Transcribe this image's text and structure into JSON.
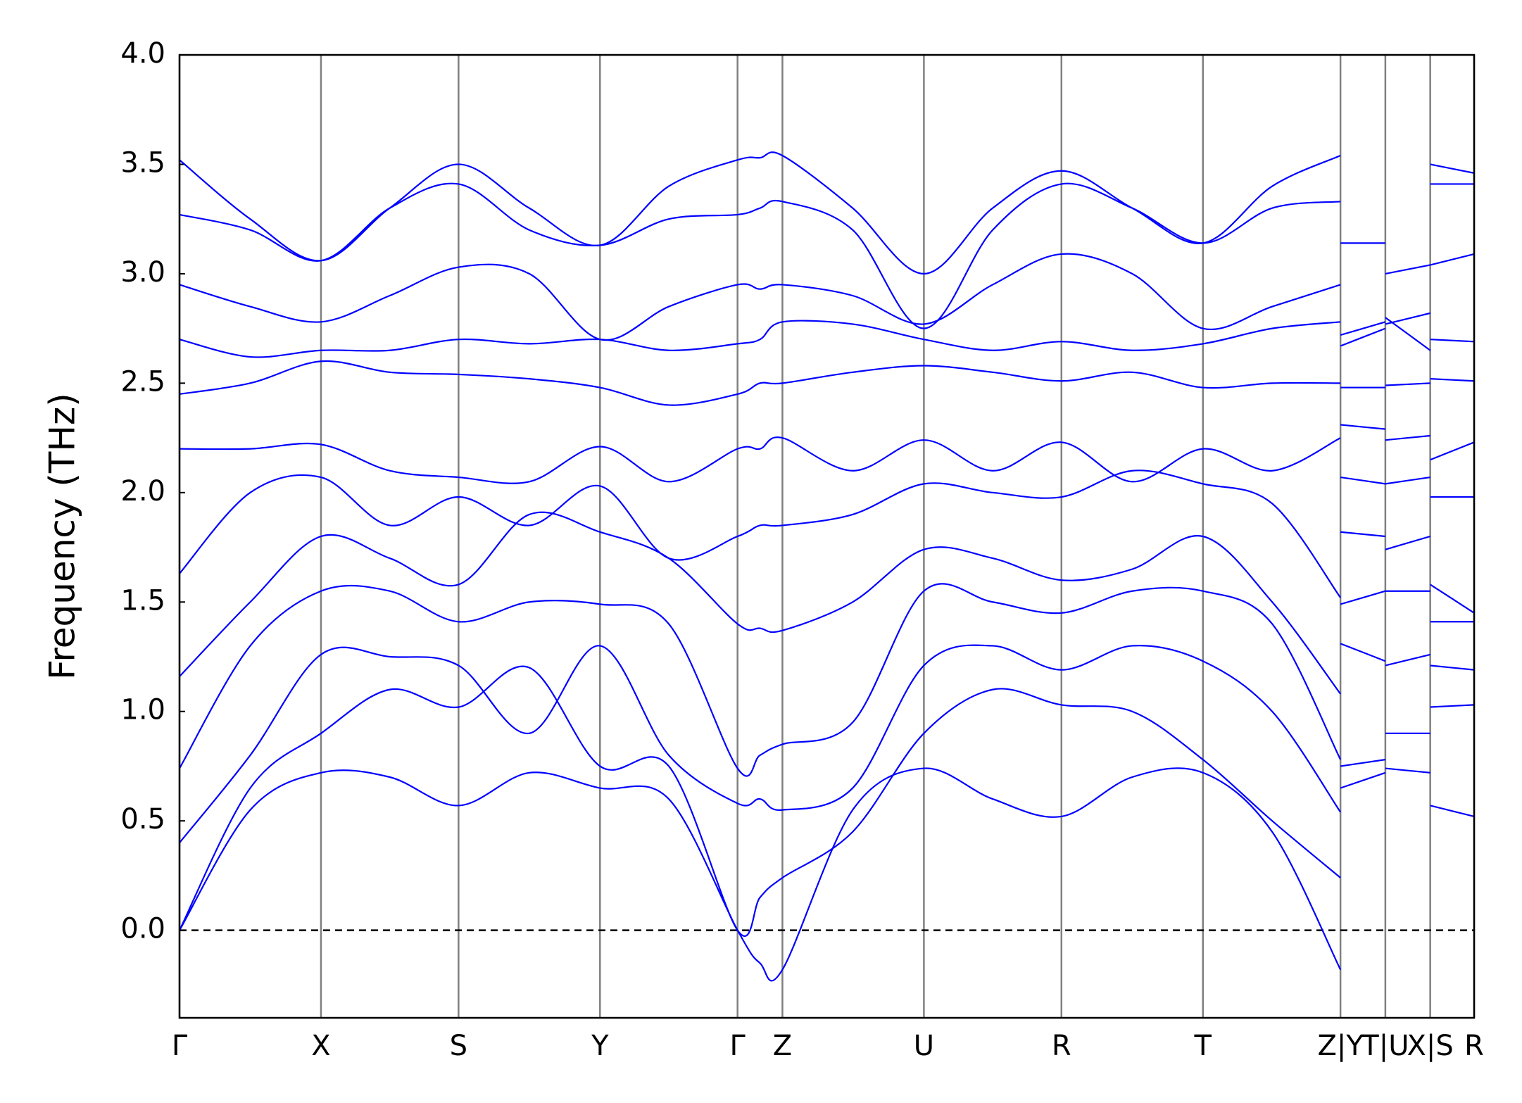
{
  "chart_data": {
    "type": "line",
    "ylabel": "Frequency (THz)",
    "color": "#0000ff",
    "ylim": [
      -0.4,
      4.0
    ],
    "yticks": [
      {
        "value": 0,
        "label": "0.0"
      },
      0.5,
      {
        "value": 1,
        "label": "1.0"
      },
      1.5,
      {
        "value": 2,
        "label": "2.0"
      },
      2.5,
      {
        "value": 3,
        "label": "3.0"
      },
      3.5,
      {
        "value": 4,
        "label": "4.0"
      }
    ],
    "xlim": [
      0,
      1.327
    ],
    "xticks": [
      {
        "value": 0,
        "label": "Γ"
      },
      {
        "value": 0.145,
        "label": "X"
      },
      {
        "value": 0.286,
        "label": "S"
      },
      {
        "value": 0.431,
        "label": "Y"
      },
      {
        "value": 0.572,
        "label": "Γ"
      },
      {
        "value": 0.618,
        "label": "Z"
      },
      {
        "value": 0.763,
        "label": "U"
      },
      {
        "value": 0.904,
        "label": "R"
      },
      {
        "value": 1.049,
        "label": "T"
      },
      {
        "value": 1.19,
        "label": "Z|Y"
      },
      {
        "value": 1.236,
        "label": "T|U"
      },
      {
        "value": 1.282,
        "label": "X|S"
      },
      {
        "value": 1.327,
        "label": "R"
      }
    ],
    "hline": 0,
    "x": [
      0,
      0.0725,
      0.145,
      0.2155,
      0.286,
      0.3585,
      0.431,
      0.5015,
      0.572,
      0.595,
      0.618,
      0.69,
      0.763,
      0.8335,
      0.904,
      0.9765,
      1.049,
      1.12,
      1.19,
      1.19,
      1.19,
      1.236,
      1.236,
      1.236,
      1.282,
      1.282,
      1.282,
      1.327
    ],
    "series": [
      {
        "values": [
          0,
          0.55,
          0.72,
          0.7,
          0.57,
          0.72,
          0.65,
          0.6,
          0,
          -0.15,
          -0.18,
          0.55,
          0.74,
          0.6,
          0.52,
          0.7,
          0.72,
          0.45,
          -0.18,
          null,
          0.65,
          0.72,
          null,
          0.74,
          0.72,
          null,
          0.57,
          0.52
        ]
      },
      {
        "values": [
          0,
          0.65,
          0.9,
          1.1,
          1.02,
          1.2,
          0.75,
          0.75,
          0,
          0.15,
          0.24,
          0.45,
          0.9,
          1.1,
          1.03,
          1.0,
          0.78,
          0.5,
          0.24,
          null,
          0.75,
          0.78,
          null,
          0.9,
          0.9,
          null,
          1.02,
          1.03
        ]
      },
      {
        "values": [
          0.4,
          0.8,
          1.26,
          1.25,
          1.21,
          0.9,
          1.3,
          0.8,
          0.58,
          0.6,
          0.55,
          0.65,
          1.21,
          1.3,
          1.19,
          1.3,
          1.23,
          1.0,
          0.54,
          null,
          1.31,
          1.23,
          null,
          1.21,
          1.26,
          null,
          1.21,
          1.19
        ]
      },
      {
        "values": [
          0.74,
          1.3,
          1.55,
          1.55,
          1.41,
          1.5,
          1.49,
          1.4,
          0.74,
          0.8,
          0.85,
          0.95,
          1.55,
          1.5,
          1.45,
          1.55,
          1.55,
          1.4,
          0.78,
          null,
          1.49,
          1.55,
          null,
          1.55,
          1.55,
          null,
          1.41,
          1.41
        ]
      },
      {
        "values": [
          1.16,
          1.5,
          1.8,
          1.7,
          1.58,
          1.9,
          1.82,
          1.7,
          1.4,
          1.38,
          1.37,
          1.5,
          1.74,
          1.7,
          1.6,
          1.65,
          1.8,
          1.5,
          1.08,
          null,
          1.82,
          1.8,
          null,
          1.74,
          1.8,
          null,
          1.58,
          1.45
        ]
      },
      {
        "values": [
          1.63,
          2.0,
          2.07,
          1.85,
          1.98,
          1.85,
          2.03,
          1.7,
          1.8,
          1.85,
          1.85,
          1.9,
          2.04,
          2.0,
          1.98,
          2.1,
          2.04,
          1.95,
          1.52,
          null,
          2.07,
          2.04,
          null,
          2.04,
          2.07,
          null,
          1.98,
          1.98
        ]
      },
      {
        "values": [
          2.2,
          2.2,
          2.22,
          2.1,
          2.07,
          2.05,
          2.21,
          2.05,
          2.2,
          2.2,
          2.25,
          2.1,
          2.24,
          2.1,
          2.23,
          2.05,
          2.2,
          2.1,
          2.25,
          null,
          2.31,
          2.29,
          null,
          2.24,
          2.26,
          null,
          2.15,
          2.23
        ]
      },
      {
        "values": [
          2.45,
          2.5,
          2.6,
          2.55,
          2.54,
          2.52,
          2.48,
          2.4,
          2.45,
          2.5,
          2.5,
          2.55,
          2.58,
          2.55,
          2.51,
          2.55,
          2.48,
          2.5,
          2.5,
          null,
          2.48,
          2.48,
          null,
          2.49,
          2.5,
          null,
          2.52,
          2.51
        ]
      },
      {
        "values": [
          2.7,
          2.62,
          2.65,
          2.65,
          2.7,
          2.68,
          2.7,
          2.65,
          2.68,
          2.7,
          2.78,
          2.77,
          2.7,
          2.65,
          2.69,
          2.65,
          2.68,
          2.75,
          2.78,
          null,
          2.67,
          2.75,
          null,
          2.77,
          2.82,
          null,
          2.7,
          2.69
        ]
      },
      {
        "values": [
          2.95,
          2.85,
          2.78,
          2.9,
          3.03,
          3.0,
          2.7,
          2.85,
          2.95,
          2.93,
          2.95,
          2.9,
          2.77,
          2.95,
          3.09,
          3.0,
          2.75,
          2.85,
          2.95,
          null,
          2.72,
          2.78,
          null,
          2.8,
          2.65,
          null,
          3.04,
          3.09
        ]
      },
      {
        "values": [
          3.27,
          3.2,
          3.06,
          3.3,
          3.41,
          3.2,
          3.13,
          3.25,
          3.27,
          3.3,
          3.33,
          3.2,
          2.75,
          3.2,
          3.41,
          3.3,
          3.14,
          3.3,
          3.33,
          null,
          3.14,
          3.14,
          null,
          3.0,
          3.04,
          null,
          3.41,
          3.41
        ]
      },
      {
        "values": [
          3.52,
          3.25,
          3.06,
          3.3,
          3.5,
          3.3,
          3.13,
          3.4,
          3.52,
          3.53,
          3.54,
          3.3,
          3.0,
          3.3,
          3.47,
          3.3,
          3.14,
          3.4,
          3.54,
          null,
          null,
          null,
          null,
          null,
          null,
          null,
          3.5,
          3.46
        ]
      }
    ]
  }
}
